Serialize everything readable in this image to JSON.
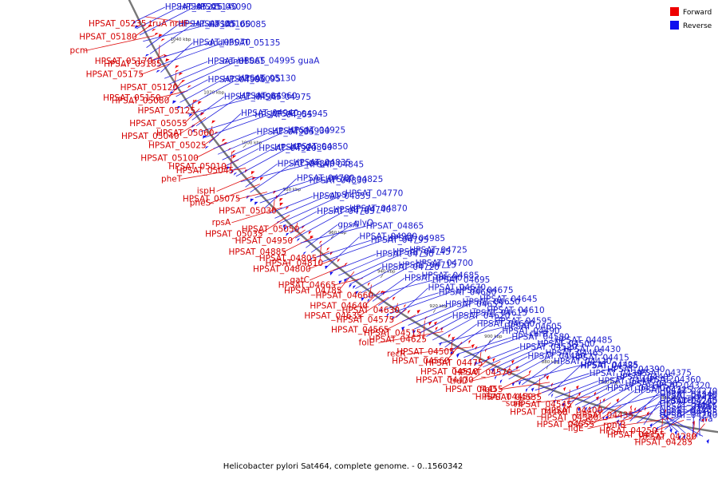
{
  "caption": "Helicobacter pylori Sat464, complete genome. - 0..1560342",
  "legend": [
    {
      "label": "Forward",
      "color": "#ee0000"
    },
    {
      "label": "Reverse",
      "color": "#1010ee"
    }
  ],
  "colors": {
    "forward": "#ee0000",
    "reverse": "#1010ee",
    "backbone": "#777777"
  },
  "ticks": [
    "1040 kbp",
    "1020 kbp",
    "1000 kbp",
    "980 kbp",
    "960 kbp",
    "940 kbp",
    "920 kbp",
    "900 kbp",
    "880 kbp",
    "860 kbp",
    "840 kbp"
  ],
  "labels_forward": [
    "HPSAT_05235 truA nrdF",
    "HPSAT_05180",
    "pcm",
    "HPSAT_05185",
    "HPSAT_05170",
    "HPSAT_05175",
    "HPSAT_05120",
    "HPSAT_05080",
    "HPSAT_05150",
    "HPSAT_05125",
    "HPSAT_05055",
    "HPSAT_05040",
    "HPSAT_05060",
    "HPSAT_05025",
    "HPSAT_05100",
    "HPSAT_05045",
    "HPSAT_05010",
    "pheT",
    "ispH",
    "pheS",
    "HPSAT_05075",
    "HPSAT_05030",
    "rpsA",
    "HPSAT_05035",
    "HPSAT_05050",
    "HPSAT_04950",
    "HPSAT_04885",
    "HPSAT_04810",
    "HPSAT_04805",
    "HPSAT_04800",
    "gatC",
    "HPSAT_04785",
    "HPSAT_04665",
    "HPSAT_04660",
    "HPSAT_04640",
    "HPSAT_04635",
    "HPSAT_04630",
    "HPSAT_04575",
    "HPSAT_04565",
    "HPSAT_04625",
    "HPSAT_04515",
    "folE",
    "HPSAT_04505",
    "HPSAT_04560",
    "recR",
    "HPSAT_04475",
    "HPSAT_04510",
    "HPSAT_04470",
    "HPSAT_04570",
    "truD",
    "HPSAT_04455",
    "HPSAT_04535",
    "flgD",
    "HPSAT_04450",
    "HPSAT_04545",
    "HPSAT_04460",
    "surE",
    "HPSAT_04400",
    "HPSAT_04380",
    "HPSAT_04555",
    "HPSAT_04435",
    "cysS",
    "flgE",
    "HPSAT_04355",
    "rpmB",
    "HPSAT_04250",
    "HPSAT_04280",
    "HPSAT_04285"
  ],
  "labels_reverse": [
    "HPSAT_05225",
    "HPSAT_05140",
    "HPSAT_05090",
    "HPSAT_05085",
    "HPSAT_05105",
    "HPSAT_05160",
    "dcd",
    "HPSAT_05135",
    "HPSAT_05070",
    "HPSAT_05065",
    "hemH",
    "HPSAT_04995 guaA",
    "HPSAT_04990",
    "HPSAT_05095",
    "HPSAT_05130",
    "HPSAT_04975",
    "HPSAT_04965",
    "HPSAT_04960",
    "HPSAT_04955",
    "HPSAT_04945",
    "HPSAT_04940",
    "HPSAT_04935",
    "HPSAT_04930",
    "HPSAT_04925",
    "HPSAT_04920",
    "HPSAT_04860",
    "HPSAT_04850",
    "HPSAT_04845",
    "HPSAT_04840",
    "HPSAT_04835",
    "HPSAT_04830",
    "HPSAT_04825",
    "HPSAT_04780",
    "HPSAT_04855",
    "glyS",
    "HPSAT_04770",
    "HPSAT_04765",
    "HPSAT_04740",
    "HPSAT_04870",
    "HPSAT_04865",
    "gpsA",
    "glyQ",
    "HPSAT_04795",
    "HPSAT_04985",
    "HPSAT_04980",
    "HPSAT_04750",
    "HPSAT_04745",
    "HPSAT_04725",
    "HPSAT_04720",
    "HPSAT_04715",
    "HPSAT_04700",
    "HPSAT_04695",
    "HPSAT_04690",
    "HPSAT_04685",
    "HPSAT_04680",
    "HPSAT_04675",
    "HPSAT_04670",
    "HPSAT_04655",
    "HPSAT_04650",
    "HPSAT_04645",
    "HPSAT_04620",
    "HPSAT_04615",
    "HPSAT_04610",
    "HPSAT_04605",
    "HPSAT_04600",
    "HPSAT_04595",
    "HPSAT_04580",
    "carB",
    "HPSAT_04490",
    "HPSAT_04520",
    "HPSAT_04500",
    "HPSAT_04485",
    "HPSAT_04480",
    "HPSAT_04465",
    "HPSAT_04430",
    "HPSAT_04425",
    "HPSAT_04420",
    "HPSAT_04415",
    "HPSAT_04395",
    "HPSAT_04390",
    "HPSAT_04385",
    "HPSAT_04410",
    "HPSAT_04405",
    "HPSAT_04375",
    "HPSAT_04370",
    "HPSAT_04365",
    "HPSAT_04360",
    "HPSAT_04340",
    "HPSAT_04325",
    "HPSAT_04320",
    "murD",
    "HPSAT_04275",
    "HPSAT_04270",
    "HPSAT_04265",
    "HPSAT_04260",
    "gyrB",
    "ruvA",
    "mraY",
    "HPSAT_04245",
    "HPSAT_04240",
    "HPSAT_04235",
    "rplI",
    "era",
    "HPSAT_04185"
  ]
}
